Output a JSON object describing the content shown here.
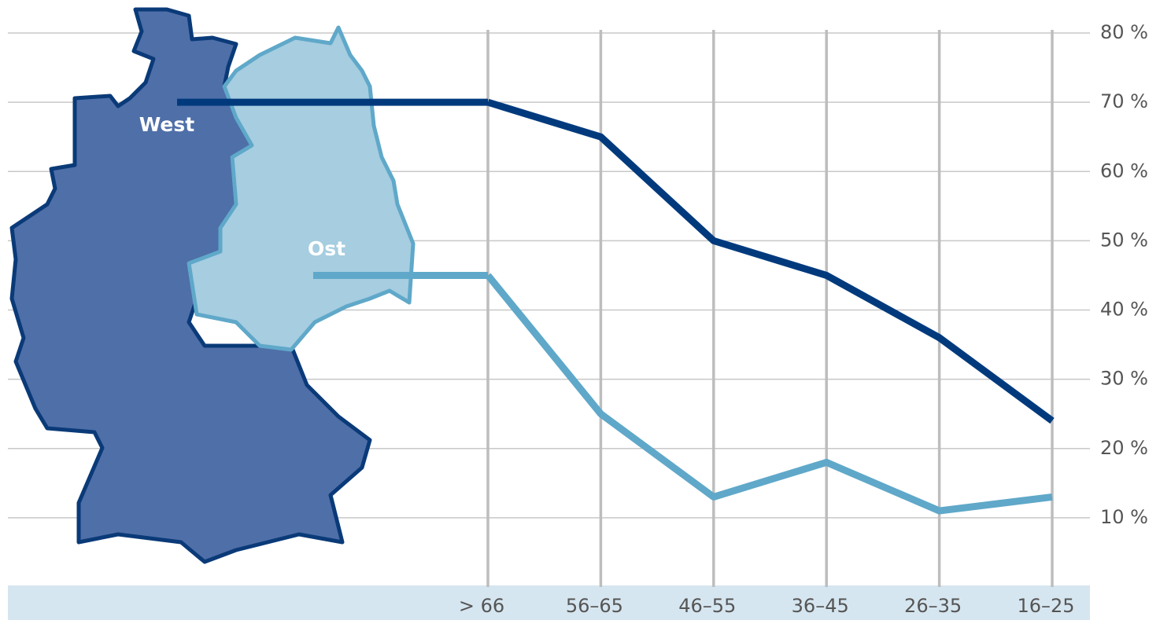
{
  "chart_data": {
    "type": "line",
    "categories": [
      "> 66",
      "56–65",
      "46–55",
      "36–45",
      "26–35",
      "16–25"
    ],
    "series": [
      {
        "name": "West",
        "color": "#003a7d",
        "values": [
          70,
          65,
          50,
          45,
          36,
          24
        ]
      },
      {
        "name": "Ost",
        "color": "#5fa8c9",
        "values": [
          45,
          25,
          13,
          18,
          11,
          13
        ]
      }
    ],
    "ylim": [
      0,
      80
    ],
    "yticks": [
      {
        "value": 10,
        "label": "10 %"
      },
      {
        "value": 20,
        "label": "20 %"
      },
      {
        "value": 30,
        "label": "30 %"
      },
      {
        "value": 40,
        "label": "40 %"
      },
      {
        "value": 50,
        "label": "50 %"
      },
      {
        "value": 60,
        "label": "60 %"
      },
      {
        "value": 70,
        "label": "70 %"
      },
      {
        "value": 80,
        "label": "80 %"
      }
    ],
    "grid": true
  }
}
